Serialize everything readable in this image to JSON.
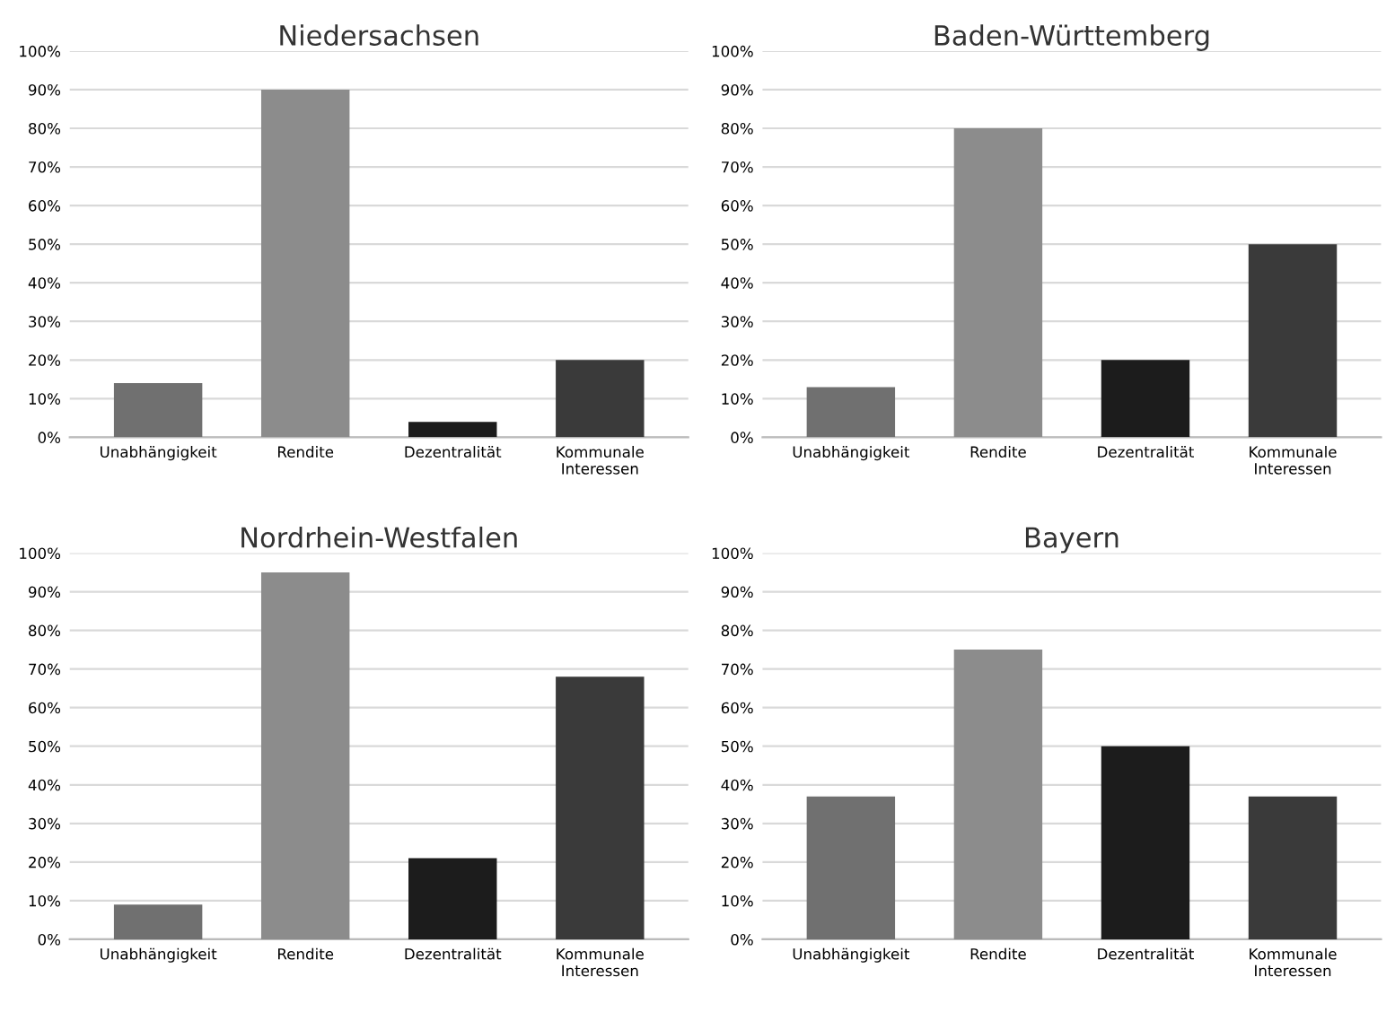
{
  "chart_data": [
    {
      "type": "bar",
      "title": "Niedersachsen",
      "categories": [
        "Unabhängigkeit",
        "Rendite",
        "Dezentralität",
        "Kommunale\nInteressen"
      ],
      "values": [
        14,
        90,
        4,
        20
      ],
      "colors": [
        "#707070",
        "#8c8c8c",
        "#1c1c1c",
        "#3a3a3a"
      ],
      "ylim": [
        0,
        100
      ],
      "yticks": [
        {
          "value": 0,
          "label": "0%"
        },
        {
          "value": 10,
          "label": "10%"
        },
        {
          "value": 20,
          "label": "20%"
        },
        {
          "value": 30,
          "label": "30%"
        },
        {
          "value": 40,
          "label": "40%"
        },
        {
          "value": 50,
          "label": "50%"
        },
        {
          "value": 60,
          "label": "60%"
        },
        {
          "value": 70,
          "label": "70%"
        },
        {
          "value": 80,
          "label": "80%"
        },
        {
          "value": 90,
          "label": "90%"
        },
        {
          "value": 100,
          "label": "100%"
        }
      ],
      "grid": "y"
    },
    {
      "type": "bar",
      "title": "Baden-Württemberg",
      "categories": [
        "Unabhängigkeit",
        "Rendite",
        "Dezentralität",
        "Kommunale\nInteressen"
      ],
      "values": [
        13,
        80,
        20,
        50
      ],
      "colors": [
        "#707070",
        "#8c8c8c",
        "#1c1c1c",
        "#3a3a3a"
      ],
      "ylim": [
        0,
        100
      ],
      "yticks": [
        {
          "value": 0,
          "label": "0%"
        },
        {
          "value": 10,
          "label": "10%"
        },
        {
          "value": 20,
          "label": "20%"
        },
        {
          "value": 30,
          "label": "30%"
        },
        {
          "value": 40,
          "label": "40%"
        },
        {
          "value": 50,
          "label": "50%"
        },
        {
          "value": 60,
          "label": "60%"
        },
        {
          "value": 70,
          "label": "70%"
        },
        {
          "value": 80,
          "label": "80%"
        },
        {
          "value": 90,
          "label": "90%"
        },
        {
          "value": 100,
          "label": "100%"
        }
      ],
      "grid": "y"
    },
    {
      "type": "bar",
      "title": "Nordrhein-Westfalen",
      "categories": [
        "Unabhängigkeit",
        "Rendite",
        "Dezentralität",
        "Kommunale\nInteressen"
      ],
      "values": [
        9,
        95,
        21,
        68
      ],
      "colors": [
        "#707070",
        "#8c8c8c",
        "#1c1c1c",
        "#3a3a3a"
      ],
      "ylim": [
        0,
        100
      ],
      "yticks": [
        {
          "value": 0,
          "label": "0%"
        },
        {
          "value": 10,
          "label": "10%"
        },
        {
          "value": 20,
          "label": "20%"
        },
        {
          "value": 30,
          "label": "30%"
        },
        {
          "value": 40,
          "label": "40%"
        },
        {
          "value": 50,
          "label": "50%"
        },
        {
          "value": 60,
          "label": "60%"
        },
        {
          "value": 70,
          "label": "70%"
        },
        {
          "value": 80,
          "label": "80%"
        },
        {
          "value": 90,
          "label": "90%"
        },
        {
          "value": 100,
          "label": "100%"
        }
      ],
      "grid": "y"
    },
    {
      "type": "bar",
      "title": "Bayern",
      "categories": [
        "Unabhängigkeit",
        "Rendite",
        "Dezentralität",
        "Kommunale\nInteressen"
      ],
      "values": [
        37,
        75,
        50,
        37
      ],
      "colors": [
        "#707070",
        "#8c8c8c",
        "#1c1c1c",
        "#3a3a3a"
      ],
      "ylim": [
        0,
        100
      ],
      "yticks": [
        {
          "value": 0,
          "label": "0%"
        },
        {
          "value": 10,
          "label": "10%"
        },
        {
          "value": 20,
          "label": "20%"
        },
        {
          "value": 30,
          "label": "30%"
        },
        {
          "value": 40,
          "label": "40%"
        },
        {
          "value": 50,
          "label": "50%"
        },
        {
          "value": 60,
          "label": "60%"
        },
        {
          "value": 70,
          "label": "70%"
        },
        {
          "value": 80,
          "label": "80%"
        },
        {
          "value": 90,
          "label": "90%"
        },
        {
          "value": 100,
          "label": "100%"
        }
      ],
      "grid": "y"
    }
  ]
}
